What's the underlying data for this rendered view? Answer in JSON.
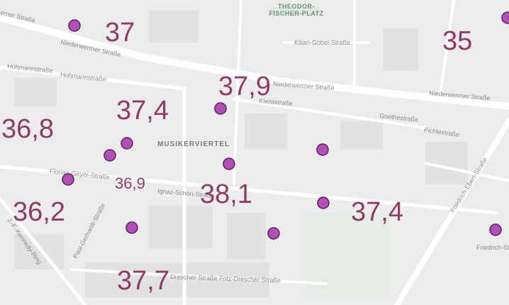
{
  "streets": [
    "erner Straße",
    "Niederwerrner Straße",
    "Niederwerrner Straße",
    "Niederwerrner Straße",
    "Hohmannstraße",
    "Hohmannstraße",
    "Kilian-Göbel-Straße",
    "Kleiststraße",
    "Goethestraße",
    "Fichtestraße",
    "Florian-Geyer-Straße",
    "Ignaz-Schön-Straße",
    "Paul-Gerhardt-Straße",
    "Drescher-Straße Fritz-Drescher-Straße",
    "Friedrich-Ebert-Straße",
    "J.-F.-Kennedy-Ring",
    "Friedrich-Ste"
  ],
  "place": [
    "THEODOR-",
    "FISCHER-PLATZ"
  ],
  "district": "MUSIKERVIERTEL",
  "values": [
    "37",
    "35",
    "37,9",
    "37,4",
    "36,8",
    "36,9",
    "38,1",
    "36,2",
    "37,4",
    "37,7"
  ]
}
